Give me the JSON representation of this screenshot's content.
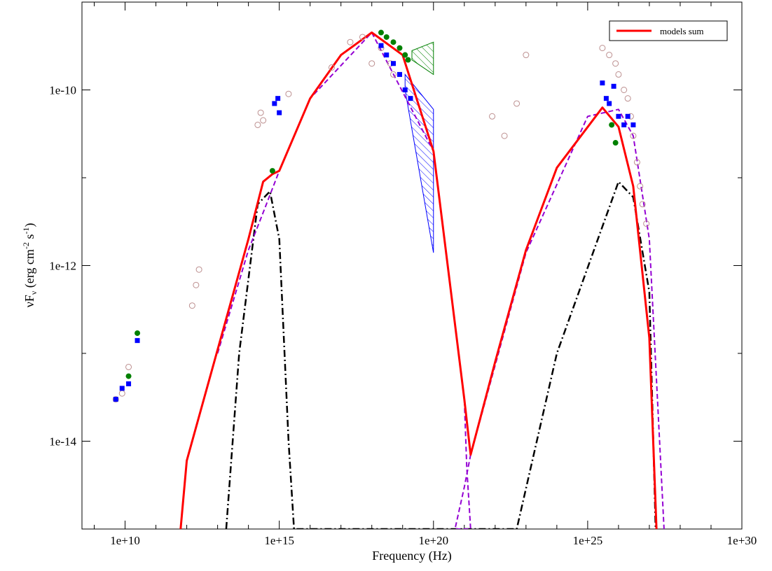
{
  "chart_data": {
    "type": "scatter",
    "xlabel": "Frequency (Hz)",
    "ylabel_main": "νF",
    "ylabel_sub": "ν",
    "ylabel_unit": " (erg cm",
    "ylabel_exp1": "-2",
    "ylabel_mid": " s",
    "ylabel_exp2": "-1",
    "ylabel_close": ")",
    "x_scale": "log",
    "y_scale": "log",
    "xlim": [
      400000000.0,
      1e+30
    ],
    "ylim": [
      1e-15,
      1e-09
    ],
    "x_ticks": [
      {
        "value": 10000000000.0,
        "label": "1e+10"
      },
      {
        "value": 1000000000000000.0,
        "label": "1e+15"
      },
      {
        "value": 1e+20,
        "label": "1e+20"
      },
      {
        "value": 1e+25,
        "label": "1e+25"
      },
      {
        "value": 1e+30,
        "label": "1e+30"
      }
    ],
    "y_ticks": [
      {
        "value": 1e-14,
        "label": "1e-14"
      },
      {
        "value": 1e-12,
        "label": "1e-12"
      },
      {
        "value": 1e-10,
        "label": "1e-10"
      }
    ],
    "legend": {
      "position": "top-right",
      "entries": [
        {
          "name": "models sum",
          "color": "#ff0000"
        }
      ]
    },
    "colors": {
      "sum": "#ff0000",
      "component_dashed": "#9400d3",
      "component_dashdot": "#000000",
      "blue": "#0000ff",
      "green": "#008000",
      "archival": "#bc8f8f"
    },
    "model_sum": [
      [
        630000000000.0,
        1e-15
      ],
      [
        1000000000000.0,
        6e-15
      ],
      [
        10000000000000.0,
        1.1e-13
      ],
      [
        100000000000000.0,
        2e-12
      ],
      [
        300000000000000.0,
        9e-12
      ],
      [
        600000000000000.0,
        1.1e-11
      ],
      [
        1000000000000000.0,
        1.2e-11
      ],
      [
        1e+16,
        8e-11
      ],
      [
        1e+17,
        2.5e-10
      ],
      [
        1e+18,
        4.5e-10
      ],
      [
        1e+19,
        2.5e-10
      ],
      [
        1e+20,
        2e-11
      ],
      [
        1e+21,
        3e-14
      ],
      [
        1.6e+21,
        7e-15
      ],
      [
        1e+22,
        8e-14
      ],
      [
        1e+23,
        1.5e-12
      ],
      [
        1e+24,
        1.3e-11
      ],
      [
        3e+25,
        6.3e-11
      ],
      [
        1e+26,
        3.8e-11
      ],
      [
        3e+26,
        8e-12
      ],
      [
        1e+27,
        1.5e-13
      ],
      [
        1.7e+27,
        1e-15
      ]
    ],
    "component_dashed": [
      [
        10000000000000.0,
        1e-13
      ],
      [
        100000000000000.0,
        1.5e-12
      ],
      [
        300000000000000.0,
        4e-12
      ],
      [
        1000000000000000.0,
        1.2e-11
      ],
      [
        1e+16,
        8e-11
      ],
      [
        1e+18,
        4.5e-10
      ],
      [
        1e+20,
        2e-11
      ],
      [
        1e+21,
        3e-14
      ],
      [
        1.2e+21,
        5e-15
      ],
      [
        1.6e+21,
        1e-15
      ],
      [
        5e+20,
        1e-15
      ],
      [
        1e+21,
        3e-15
      ],
      [
        1.6e+21,
        7e-15
      ],
      [
        1e+23,
        1.4e-12
      ],
      [
        1e+25,
        5e-11
      ],
      [
        1e+26,
        6e-11
      ],
      [
        3e+26,
        3e-11
      ],
      [
        1e+27,
        2e-12
      ],
      [
        3e+27,
        1e-15
      ]
    ],
    "component_dashdot": [
      [
        19000000000000.0,
        1e-15
      ],
      [
        50000000000000.0,
        1e-13
      ],
      [
        200000000000000.0,
        5e-12
      ],
      [
        500000000000000.0,
        7e-12
      ],
      [
        1000000000000000.0,
        2e-12
      ],
      [
        2000000000000000.0,
        1e-14
      ],
      [
        3000000000000000.0,
        1e-15
      ],
      [
        5e+22,
        1e-15
      ],
      [
        1e+24,
        1e-13
      ],
      [
        1e+26,
        9e-12
      ],
      [
        3e+26,
        6e-12
      ],
      [
        1e+27,
        5e-13
      ],
      [
        1.6e+27,
        1e-15
      ]
    ],
    "blue_points": [
      [
        5000000000.0,
        3e-14
      ],
      [
        8000000000.0,
        4e-14
      ],
      [
        13000000000.0,
        4.5e-14
      ],
      [
        25000000000.0,
        1.4e-13
      ],
      [
        700000000000000.0,
        7e-11
      ],
      [
        900000000000000.0,
        8e-11
      ],
      [
        1000000000000000.0,
        5.5e-11
      ],
      [
        2e+18,
        3.2e-10
      ],
      [
        3e+18,
        2.5e-10
      ],
      [
        5e+18,
        2e-10
      ],
      [
        8e+18,
        1.5e-10
      ],
      [
        1.2e+19,
        1e-10
      ],
      [
        1.8e+19,
        8e-11
      ],
      [
        3e+25,
        1.2e-10
      ],
      [
        4e+25,
        8e-11
      ],
      [
        5e+25,
        7e-11
      ],
      [
        7e+25,
        1.1e-10
      ],
      [
        1e+26,
        5e-11
      ],
      [
        1.5e+26,
        4e-11
      ],
      [
        2e+26,
        5e-11
      ],
      [
        3e+26,
        4e-11
      ]
    ],
    "green_points": [
      [
        13000000000.0,
        5.5e-14
      ],
      [
        25000000000.0,
        1.7e-13
      ],
      [
        600000000000000.0,
        1.2e-11
      ],
      [
        2e+18,
        4.5e-10
      ],
      [
        3e+18,
        4e-10
      ],
      [
        5e+18,
        3.5e-10
      ],
      [
        8e+18,
        3e-10
      ],
      [
        1.2e+19,
        2.5e-10
      ],
      [
        1.5e+19,
        2.2e-10
      ],
      [
        6e+25,
        4e-11
      ],
      [
        8e+25,
        2.5e-11
      ]
    ],
    "archival_points": [
      [
        5000000000.0,
        3e-14
      ],
      [
        8000000000.0,
        3.5e-14
      ],
      [
        13000000000.0,
        7e-14
      ],
      [
        1500000000000.0,
        3.5e-13
      ],
      [
        2000000000000.0,
        6e-13
      ],
      [
        2500000000000.0,
        9e-13
      ],
      [
        200000000000000.0,
        4e-11
      ],
      [
        250000000000000.0,
        5.5e-11
      ],
      [
        300000000000000.0,
        4.5e-11
      ],
      [
        2000000000000000.0,
        9e-11
      ],
      [
        5e+16,
        1.8e-10
      ],
      [
        2e+17,
        3.5e-10
      ],
      [
        5e+17,
        4e-10
      ],
      [
        1e+18,
        2e-10
      ],
      [
        2e+18,
        3e-10
      ],
      [
        4e+18,
        2e-10
      ],
      [
        5e+18,
        1.5e-10
      ],
      [
        8e+21,
        5e-11
      ],
      [
        2e+22,
        3e-11
      ],
      [
        5e+22,
        7e-11
      ],
      [
        1e+23,
        2.5e-10
      ],
      [
        3e+25,
        3e-10
      ],
      [
        5e+25,
        2.5e-10
      ],
      [
        8e+25,
        2e-10
      ],
      [
        1e+26,
        1.5e-10
      ],
      [
        1.5e+26,
        1e-10
      ],
      [
        2e+26,
        8e-11
      ],
      [
        2.5e+26,
        5e-11
      ],
      [
        3e+26,
        3e-11
      ],
      [
        4e+26,
        1.5e-11
      ],
      [
        5e+26,
        8e-12
      ],
      [
        6e+26,
        5e-12
      ],
      [
        8e+26,
        3e-12
      ]
    ],
    "butterfly_green": {
      "x_from": 2e+19,
      "x_to": 1e+20,
      "y_low_from": 2.2e-10,
      "y_high_from": 2.8e-10,
      "y_low_to": 1.5e-10,
      "y_high_to": 3.5e-10
    },
    "butterfly_blue": {
      "x_from": 1.2e+19,
      "x_to": 1e+20,
      "y_low_from": 1e-10,
      "y_high_from": 1.5e-10,
      "y_low_to": 1.4e-12,
      "y_high_to": 6e-11
    }
  }
}
